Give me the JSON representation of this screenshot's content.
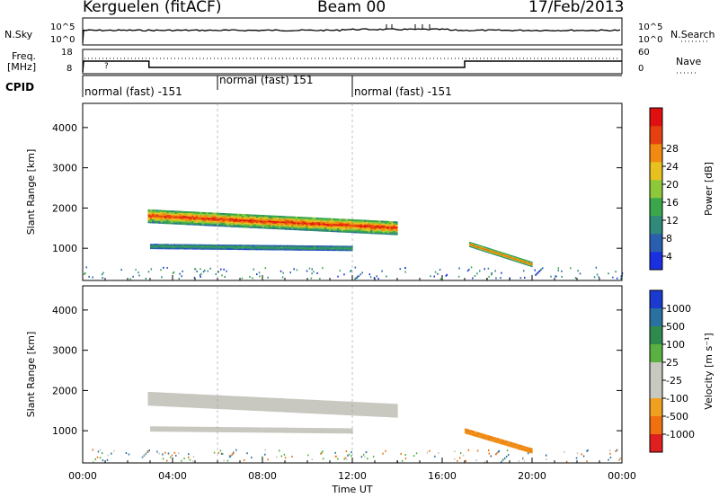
{
  "header": {
    "station": "Kerguelen (fitACF)",
    "beam": "Beam 00",
    "date": "17/Feb/2013"
  },
  "side_labels": {
    "nsky": "N.Sky",
    "nsky_ticks": [
      "10^5",
      "10^0"
    ],
    "nsearch": "N.Search",
    "nsearch_ticks": [
      "10^5",
      "10^0"
    ],
    "freq": "Freq.",
    "freq_unit": "[MHz]",
    "freq_ticks": [
      "18",
      "8"
    ],
    "nave": "Nave",
    "nave_ticks": [
      "60",
      "0"
    ],
    "cpid": "CPID"
  },
  "cpid_segments": [
    {
      "label": "normal (fast) -151",
      "start_h": 0,
      "end_h": 6
    },
    {
      "label": "normal (fast) 151",
      "start_h": 6,
      "end_h": 12
    },
    {
      "label": "normal (fast) -151",
      "start_h": 12,
      "end_h": 24
    }
  ],
  "chart_data": [
    {
      "type": "heatmap",
      "panel": "power",
      "xlabel": "",
      "ylabel": "Slant Range [km]",
      "xlim": [
        0,
        24
      ],
      "ylim": [
        200,
        4600
      ],
      "yticks": [
        "1000",
        "2000",
        "3000",
        "4000"
      ],
      "colorbar": {
        "label": "Power [dB]",
        "ticks": [
          "4",
          "8",
          "12",
          "16",
          "20",
          "24",
          "28"
        ],
        "colors": [
          "#1a2fe0",
          "#2a5fb0",
          "#2f8a7a",
          "#3aa84a",
          "#8cc83a",
          "#e8c020",
          "#f08a10",
          "#e64010",
          "#e01010"
        ]
      },
      "features": [
        {
          "name": "main echo band",
          "from_h": 2.9,
          "to_h": 14.0,
          "range_km": [
            1800,
            1500
          ],
          "power_db": 26
        },
        {
          "name": "lower band",
          "from_h": 3.0,
          "to_h": 12.0,
          "range_km": [
            1050,
            1000
          ],
          "power_db": 10
        },
        {
          "name": "late event",
          "from_h": 17.2,
          "to_h": 20.0,
          "range_km": [
            1100,
            600
          ],
          "power_db": 24
        }
      ]
    },
    {
      "type": "heatmap",
      "panel": "velocity",
      "xlabel": "Time UT",
      "ylabel": "Slant Range [km]",
      "xlim": [
        0,
        24
      ],
      "ylim": [
        200,
        4600
      ],
      "xticks": [
        "00:00",
        "04:00",
        "08:00",
        "12:00",
        "16:00",
        "20:00",
        "00:00"
      ],
      "yticks": [
        "1000",
        "2000",
        "3000",
        "4000"
      ],
      "colorbar": {
        "label": "Velocity [m s⁻¹]",
        "ticks": [
          "1000",
          "500",
          "100",
          "25",
          "-25",
          "-100",
          "-500",
          "-1000"
        ],
        "colors": [
          "#1a3ad0",
          "#2a70a0",
          "#2f8a50",
          "#5ab040",
          "#c8c8c0",
          "#c8c8c0",
          "#f0a020",
          "#f07010",
          "#e02020"
        ]
      },
      "features": [
        {
          "name": "ground scatter main",
          "from_h": 2.9,
          "to_h": 14.0,
          "range_km": [
            1800,
            1500
          ],
          "velocity": 0
        },
        {
          "name": "ground scatter lower",
          "from_h": 3.0,
          "to_h": 12.0,
          "range_km": [
            1050,
            1000
          ],
          "velocity": 0
        },
        {
          "name": "late ionospheric",
          "from_h": 17.0,
          "to_h": 20.0,
          "range_km": [
            1000,
            500
          ],
          "velocity": -300
        }
      ]
    }
  ]
}
